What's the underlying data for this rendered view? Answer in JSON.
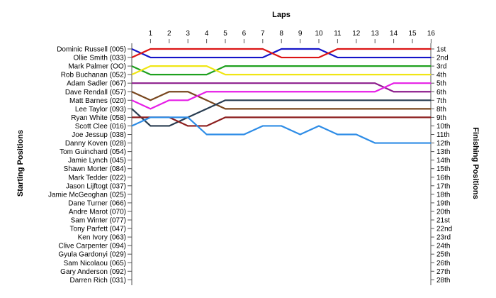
{
  "chart_data": {
    "type": "line",
    "title": "Laps",
    "ylabel_left": "Starting Positions",
    "ylabel_right": "Finishing Positions",
    "x": [
      0,
      1,
      2,
      3,
      4,
      5,
      6,
      7,
      8,
      9,
      10,
      11,
      12,
      13,
      14,
      15,
      16
    ],
    "x_tick_labels": [
      "1",
      "2",
      "3",
      "4",
      "5",
      "6",
      "7",
      "8",
      "9",
      "10",
      "11",
      "12",
      "13",
      "14",
      "15",
      "16"
    ],
    "drivers": [
      "Dominic Russell (005)",
      "Ollie Smith (033)",
      "Mark Palmer (OO)",
      "Rob Buchanan (052)",
      "Adam Sadler (067)",
      "Dave Rendall (057)",
      "Matt Barnes (020)",
      "Lee Taylor (093)",
      "Ryan White (058)",
      "Scott Clee (016)",
      "Joe Jessup (038)",
      "Danny Koven (028)",
      "Tom Guinchard (054)",
      "Jamie Lynch (045)",
      "Shawn Morter (084)",
      "Mark Tedder (022)",
      "Jason Lijftogt (037)",
      "Jamie McGeoghan (025)",
      "Dane Turner (066)",
      "Andre Marot (070)",
      "Sam Winter (077)",
      "Tony Parfett (047)",
      "Ken Ivory (063)",
      "Clive Carpenter (094)",
      "Gyula Gardonyi (029)",
      "Sam Nicolaou (065)",
      "Gary Anderson (092)",
      "Darren Rich (031)"
    ],
    "finishing_positions": [
      "1st",
      "2nd",
      "3rd",
      "4th",
      "5th",
      "6th",
      "7th",
      "8th",
      "9th",
      "10th",
      "11th",
      "12th",
      "13th",
      "14th",
      "15th",
      "16th",
      "17th",
      "18th",
      "19th",
      "20th",
      "21st",
      "22nd",
      "23rd",
      "24th",
      "25th",
      "26th",
      "27th",
      "28th"
    ],
    "series": [
      {
        "color": "#1414c8",
        "positions": [
          1,
          2,
          2,
          2,
          2,
          2,
          2,
          2,
          1,
          1,
          1,
          2,
          2,
          2,
          2,
          2,
          2
        ]
      },
      {
        "color": "#dc1414",
        "positions": [
          2,
          1,
          1,
          1,
          1,
          1,
          1,
          1,
          2,
          2,
          2,
          1,
          1,
          1,
          1,
          1,
          1
        ]
      },
      {
        "color": "#1ea01e",
        "positions": [
          3,
          4,
          4,
          4,
          4,
          3,
          3,
          3,
          3,
          3,
          3,
          3,
          3,
          3,
          3,
          3,
          3
        ]
      },
      {
        "color": "#f0e614",
        "positions": [
          4,
          3,
          3,
          3,
          3,
          4,
          4,
          4,
          4,
          4,
          4,
          4,
          4,
          4,
          4,
          4,
          4
        ]
      },
      {
        "color": "#8c1e8c",
        "positions": [
          5,
          5,
          5,
          5,
          5,
          5,
          5,
          5,
          5,
          5,
          5,
          5,
          5,
          5,
          6,
          6,
          6
        ]
      },
      {
        "color": "#78461e",
        "positions": [
          6,
          7,
          6,
          6,
          7,
          8,
          8,
          8,
          8,
          8,
          8,
          8,
          8,
          8,
          8,
          8,
          8
        ]
      },
      {
        "color": "#e61ee6",
        "positions": [
          7,
          8,
          7,
          7,
          6,
          6,
          6,
          6,
          6,
          6,
          6,
          6,
          6,
          6,
          5,
          5,
          5
        ]
      },
      {
        "color": "#283c50",
        "positions": [
          8,
          10,
          10,
          9,
          8,
          7,
          7,
          7,
          7,
          7,
          7,
          7,
          7,
          7,
          7,
          7,
          7
        ]
      },
      {
        "color": "#8c1e1e",
        "positions": [
          9,
          9,
          9,
          10,
          10,
          9,
          9,
          9,
          9,
          9,
          9,
          9,
          9,
          9,
          9,
          9,
          9
        ]
      },
      {
        "color": "#2d8ce6",
        "positions": [
          10,
          9,
          9,
          9,
          11,
          11,
          11,
          10,
          10,
          11,
          10,
          11,
          11,
          12,
          12,
          12,
          12
        ]
      }
    ]
  }
}
